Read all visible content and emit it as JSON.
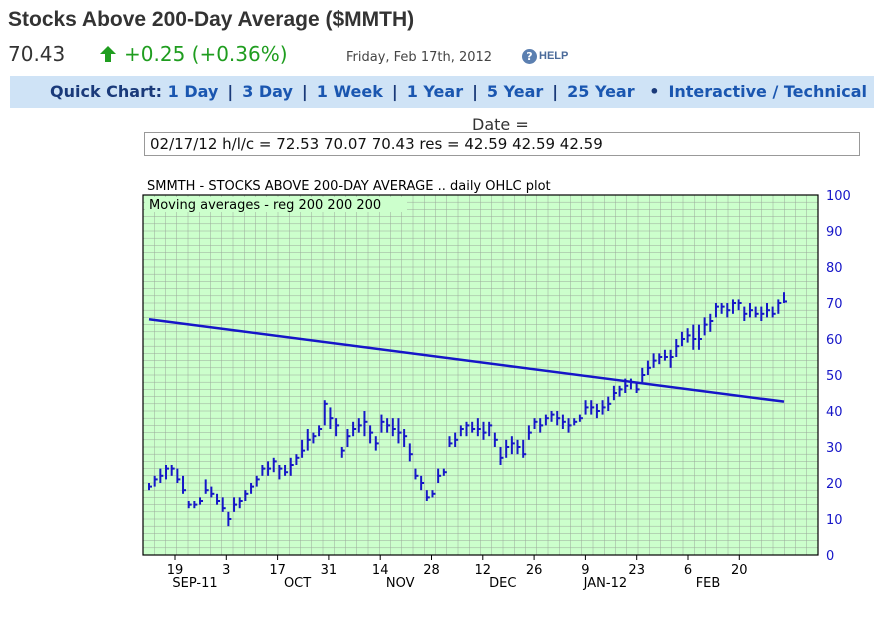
{
  "header": {
    "title": "Stocks Above 200-Day Average ($MMTH)",
    "price": "70.43",
    "change": "+0.25 (+0.36%)",
    "date": "Friday, Feb 17th, 2012",
    "help_label": "HELP",
    "help_icon": "?"
  },
  "quickbar": {
    "label": "Quick Chart:",
    "links": [
      "1 Day",
      "3 Day",
      "1 Week",
      "1 Year",
      "5 Year",
      "25 Year"
    ],
    "bullet": "•",
    "extra_link": "Interactive / Technical"
  },
  "readout": {
    "label": "Date =",
    "value": "02/17/12 h/l/c = 72.53 70.07 70.43 res = 42.59 42.59 42.59"
  },
  "chart_data": {
    "type": "ohlc",
    "title": "SMMTH - STOCKS ABOVE 200-DAY AVERAGE .. daily OHLC plot",
    "subtitle": "Moving averages - reg  200 200 200",
    "ylim": [
      0,
      100
    ],
    "yticks": [
      0,
      10,
      20,
      30,
      40,
      50,
      60,
      70,
      80,
      90,
      100
    ],
    "xticks": [
      "19",
      "3",
      "17",
      "31",
      "14",
      "28",
      "12",
      "26",
      "9",
      "23",
      "6",
      "20"
    ],
    "month_labels": [
      "SEP-11",
      "OCT",
      "NOV",
      "DEC",
      "JAN-12",
      "FEB"
    ],
    "colors": {
      "bars": "#1616c8",
      "grid_bg": "#ccffcc",
      "grid_line": "#9aa89a",
      "axis_text": "#1616c8"
    },
    "ohlc": [
      [
        20,
        18,
        19
      ],
      [
        22,
        19,
        21
      ],
      [
        24,
        20,
        22
      ],
      [
        25,
        21,
        24
      ],
      [
        25,
        22,
        24
      ],
      [
        24,
        20,
        21
      ],
      [
        22,
        17,
        18
      ],
      [
        15,
        13,
        14
      ],
      [
        15,
        13,
        14
      ],
      [
        16,
        14,
        15
      ],
      [
        21,
        17,
        18
      ],
      [
        19,
        16,
        17
      ],
      [
        17,
        14,
        15
      ],
      [
        16,
        12,
        13
      ],
      [
        12,
        8,
        10
      ],
      [
        16,
        12,
        14
      ],
      [
        16,
        13,
        15
      ],
      [
        18,
        15,
        17
      ],
      [
        20,
        17,
        19
      ],
      [
        22,
        19,
        21
      ],
      [
        25,
        22,
        24
      ],
      [
        26,
        22,
        24
      ],
      [
        27,
        23,
        26
      ],
      [
        25,
        21,
        24
      ],
      [
        25,
        22,
        23
      ],
      [
        27,
        22,
        25
      ],
      [
        28,
        25,
        27
      ],
      [
        32,
        27,
        29
      ],
      [
        35,
        29,
        32
      ],
      [
        34,
        31,
        33
      ],
      [
        36,
        33,
        35
      ],
      [
        43,
        36,
        42
      ],
      [
        41,
        35,
        38
      ],
      [
        38,
        33,
        36
      ],
      [
        30,
        27,
        29
      ],
      [
        35,
        30,
        33
      ],
      [
        37,
        33,
        35
      ],
      [
        38,
        34,
        36
      ],
      [
        40,
        33,
        37
      ],
      [
        36,
        31,
        34
      ],
      [
        33,
        29,
        31
      ],
      [
        39,
        34,
        37
      ],
      [
        38,
        34,
        36
      ],
      [
        38,
        33,
        35
      ],
      [
        38,
        31,
        34
      ],
      [
        35,
        30,
        33
      ],
      [
        31,
        26,
        28
      ],
      [
        24,
        21,
        22
      ],
      [
        22,
        18,
        20
      ],
      [
        18,
        15,
        16
      ],
      [
        18,
        16,
        17
      ],
      [
        24,
        20,
        22
      ],
      [
        24,
        22,
        23
      ],
      [
        33,
        30,
        31
      ],
      [
        34,
        30,
        32
      ],
      [
        36,
        33,
        35
      ],
      [
        37,
        33,
        36
      ],
      [
        37,
        34,
        35
      ],
      [
        38,
        33,
        35
      ],
      [
        37,
        32,
        34
      ],
      [
        37,
        33,
        36
      ],
      [
        34,
        30,
        32
      ],
      [
        30,
        25,
        27
      ],
      [
        32,
        27,
        30
      ],
      [
        33,
        28,
        31
      ],
      [
        32,
        28,
        30
      ],
      [
        32,
        27,
        28
      ],
      [
        36,
        32,
        34
      ],
      [
        38,
        35,
        37
      ],
      [
        38,
        34,
        36
      ],
      [
        39,
        36,
        38
      ],
      [
        40,
        37,
        39
      ],
      [
        40,
        36,
        38
      ],
      [
        39,
        35,
        37
      ],
      [
        38,
        34,
        36
      ],
      [
        38,
        36,
        37
      ],
      [
        39,
        37,
        38
      ],
      [
        43,
        39,
        41
      ],
      [
        43,
        39,
        41
      ],
      [
        42,
        38,
        40
      ],
      [
        43,
        39,
        41
      ],
      [
        44,
        40,
        42
      ],
      [
        47,
        43,
        45
      ],
      [
        47,
        44,
        46
      ],
      [
        49,
        45,
        47
      ],
      [
        49,
        46,
        48
      ],
      [
        48,
        45,
        46
      ],
      [
        52,
        48,
        50
      ],
      [
        54,
        50,
        52
      ],
      [
        56,
        52,
        54
      ],
      [
        56,
        53,
        55
      ],
      [
        57,
        54,
        55
      ],
      [
        57,
        52,
        55
      ],
      [
        60,
        55,
        58
      ],
      [
        62,
        58,
        60
      ],
      [
        63,
        59,
        61
      ],
      [
        64,
        57,
        60
      ],
      [
        64,
        57,
        60
      ],
      [
        66,
        61,
        64
      ],
      [
        67,
        62,
        65
      ],
      [
        70,
        66,
        69
      ],
      [
        70,
        67,
        69
      ],
      [
        70,
        66,
        68
      ],
      [
        71,
        67,
        70
      ],
      [
        71,
        68,
        70
      ],
      [
        69,
        65,
        67
      ],
      [
        70,
        66,
        68
      ],
      [
        69,
        66,
        67
      ],
      [
        69,
        65,
        67
      ],
      [
        70,
        66,
        68
      ],
      [
        69,
        66,
        67
      ],
      [
        71,
        67,
        70
      ],
      [
        73,
        70,
        70.43
      ]
    ],
    "ma200": {
      "start": 65.5,
      "end": 42.59
    }
  }
}
